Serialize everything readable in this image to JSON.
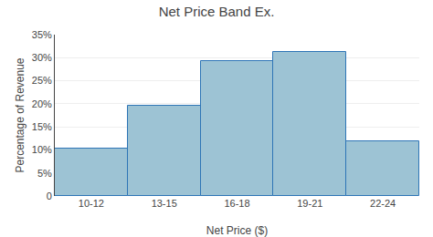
{
  "chart_data": {
    "type": "bar",
    "title": "Net Price Band Ex.",
    "categories": [
      "10-12",
      "13-15",
      "16-18",
      "19-21",
      "22-24"
    ],
    "values": [
      0.103,
      0.195,
      0.292,
      0.313,
      0.118
    ],
    "color": "#9DC3D4",
    "xlabel": "Net Price ($)",
    "ylabel": "Percentage of Revenue",
    "ylim": [
      0,
      0.35
    ],
    "yticks": [
      0,
      {
        "value": 0.05,
        "label": "5%"
      },
      {
        "value": 0.1,
        "label": "10%"
      },
      {
        "value": 0.15,
        "label": "15%"
      },
      {
        "value": 0.2,
        "label": "20%"
      },
      {
        "value": 0.25,
        "label": "25%"
      },
      {
        "value": 0.3,
        "label": "30%"
      },
      {
        "value": 0.35,
        "label": "35%"
      }
    ],
    "grid": true
  }
}
